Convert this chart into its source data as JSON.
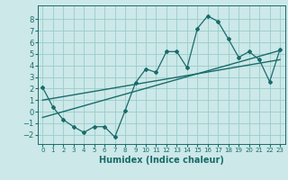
{
  "xlabel": "Humidex (Indice chaleur)",
  "ylabel": "",
  "xlim": [
    -0.5,
    23.5
  ],
  "ylim": [
    -2.8,
    9.2
  ],
  "yticks": [
    -2,
    -1,
    0,
    1,
    2,
    3,
    4,
    5,
    6,
    7,
    8
  ],
  "xticks": [
    0,
    1,
    2,
    3,
    4,
    5,
    6,
    7,
    8,
    9,
    10,
    11,
    12,
    13,
    14,
    15,
    16,
    17,
    18,
    19,
    20,
    21,
    22,
    23
  ],
  "bg_color": "#cce8e8",
  "grid_color": "#99cccc",
  "line_color": "#1a6b6b",
  "data_x": [
    0,
    1,
    2,
    3,
    4,
    5,
    6,
    7,
    8,
    9,
    10,
    11,
    12,
    13,
    14,
    15,
    16,
    17,
    18,
    19,
    20,
    21,
    22,
    23
  ],
  "data_y": [
    2.1,
    0.4,
    -0.7,
    -1.3,
    -1.8,
    -1.3,
    -1.3,
    -2.2,
    0.1,
    2.5,
    3.7,
    3.4,
    5.2,
    5.2,
    3.8,
    7.2,
    8.3,
    7.8,
    6.3,
    4.7,
    5.2,
    4.5,
    2.6,
    5.4
  ],
  "trend1_x": [
    0,
    23
  ],
  "trend1_y": [
    1.0,
    4.5
  ],
  "trend2_x": [
    0,
    23
  ],
  "trend2_y": [
    -0.5,
    5.3
  ]
}
